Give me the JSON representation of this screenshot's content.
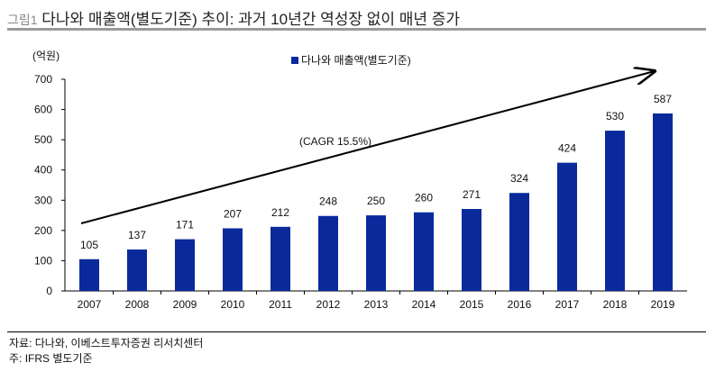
{
  "title": {
    "figure": "그림1",
    "text": "다나와 매출액(별도기준) 추이: 과거 10년간 역성장 없이 매년 증가"
  },
  "chart_data": {
    "type": "bar",
    "title": "다나와 매출액(별도기준) 추이: 과거 10년간 역성장 없이 매년 증가",
    "ylabel": "(억원)",
    "ylim": [
      0,
      700
    ],
    "yticks": [
      0,
      100,
      200,
      300,
      400,
      500,
      600,
      700
    ],
    "categories": [
      "2007",
      "2008",
      "2009",
      "2010",
      "2011",
      "2012",
      "2013",
      "2014",
      "2015",
      "2016",
      "2017",
      "2018",
      "2019"
    ],
    "series": [
      {
        "name": "다나와 매출액(별도기준)",
        "values": [
          105,
          137,
          171,
          207,
          212,
          248,
          250,
          260,
          271,
          324,
          424,
          530,
          587
        ],
        "color": "#0a2a9b"
      }
    ],
    "legend": "top-center",
    "annotation": "(CAGR 15.5%)",
    "grid": false
  },
  "footer": {
    "source": "자료: 다나와, 이베스트투자증권 리서치센터",
    "note": "주: IFRS 별도기준"
  }
}
